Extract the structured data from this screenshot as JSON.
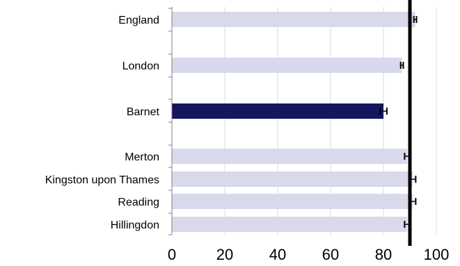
{
  "chart_data": {
    "type": "bar",
    "orientation": "horizontal",
    "categories": [
      "England",
      "London",
      "Barnet",
      "Merton",
      "Kingston upon Thames",
      "Reading",
      "Hillingdon"
    ],
    "values": [
      92,
      87,
      80,
      89,
      91,
      91,
      89
    ],
    "error_low": [
      0.5,
      0.5,
      1.3,
      1.0,
      1.2,
      1.2,
      1.0
    ],
    "error_high": [
      0.5,
      0.5,
      1.3,
      1.0,
      1.2,
      1.2,
      1.0
    ],
    "highlight_category": "Barnet",
    "reference_line": 90,
    "xlim": [
      0,
      100
    ],
    "xticks": [
      0,
      20,
      40,
      60,
      80,
      100
    ],
    "xtick_labels": [
      "0",
      "20",
      "40",
      "60",
      "80",
      "100"
    ],
    "grid": true,
    "legend": "none",
    "colors": {
      "bar": "#d9d9ec",
      "highlight": "#14175e",
      "reference": "#000000",
      "grid": "#d9d9d9",
      "axis": "#808080"
    }
  }
}
